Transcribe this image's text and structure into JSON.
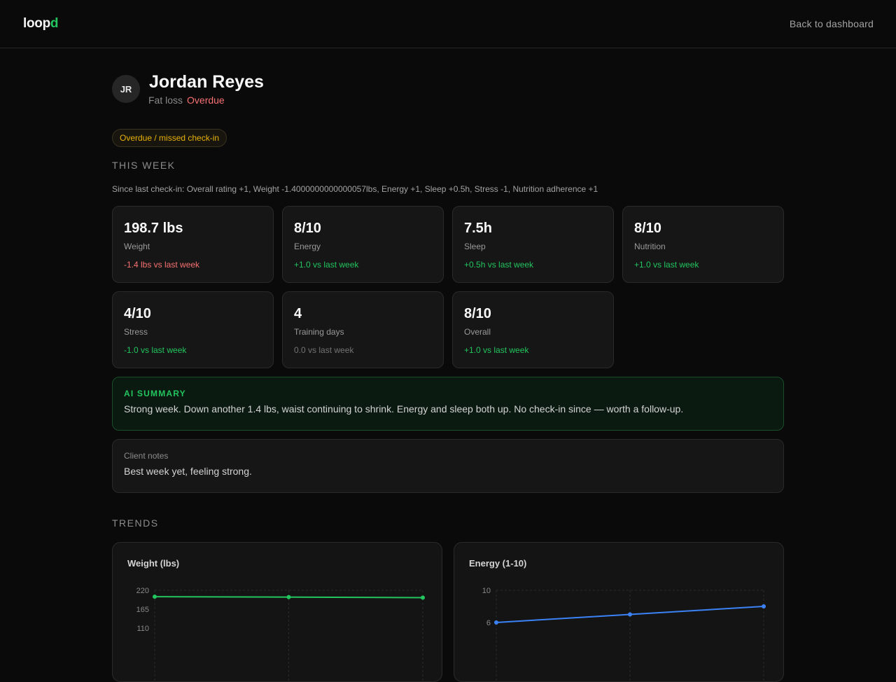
{
  "header": {
    "logo_main": "loop",
    "logo_accent": "d",
    "back_link": "Back to dashboard"
  },
  "client": {
    "initials": "JR",
    "name": "Jordan Reyes",
    "goal": "Fat loss",
    "status": "Overdue"
  },
  "alert": "Overdue / missed check-in",
  "this_week": {
    "title": "THIS WEEK",
    "since_line": "Since last check-in: Overall rating +1, Weight -1.4000000000000057lbs, Energy +1, Sleep +0.5h, Stress -1, Nutrition adherence +1",
    "stats": [
      {
        "value": "198.7 lbs",
        "label": "Weight",
        "delta": "-1.4 lbs vs last week",
        "tone": "neg"
      },
      {
        "value": "8/10",
        "label": "Energy",
        "delta": "+1.0 vs last week",
        "tone": "pos"
      },
      {
        "value": "7.5h",
        "label": "Sleep",
        "delta": "+0.5h vs last week",
        "tone": "pos"
      },
      {
        "value": "8/10",
        "label": "Nutrition",
        "delta": "+1.0 vs last week",
        "tone": "pos"
      },
      {
        "value": "4/10",
        "label": "Stress",
        "delta": "-1.0 vs last week",
        "tone": "pos"
      },
      {
        "value": "4",
        "label": "Training days",
        "delta": "0.0 vs last week",
        "tone": "zero"
      },
      {
        "value": "8/10",
        "label": "Overall",
        "delta": "+1.0 vs last week",
        "tone": "pos"
      }
    ]
  },
  "ai_summary": {
    "title": "AI SUMMARY",
    "text": "Strong week. Down another 1.4 lbs, waist continuing to shrink. Energy and sleep both up. No check-in since — worth a follow-up."
  },
  "notes": {
    "label": "Client notes",
    "text": "Best week yet, feeling strong."
  },
  "trends": {
    "title": "TRENDS"
  },
  "colors": {
    "accent": "#22c55e",
    "negative": "#f87171",
    "warning": "#eab308",
    "energy_line": "#3b82f6"
  },
  "chart_data": [
    {
      "type": "line",
      "title": "Weight (lbs)",
      "y_ticks": [
        "220",
        "165",
        "110"
      ],
      "ylim": [
        0,
        220
      ],
      "x": [
        0,
        1,
        2
      ],
      "values": [
        201.5,
        200.1,
        198.7
      ],
      "color": "#22c55e"
    },
    {
      "type": "line",
      "title": "Energy (1-10)",
      "y_ticks": [
        "10",
        "6"
      ],
      "ylim": [
        0,
        10
      ],
      "x": [
        0,
        1,
        2
      ],
      "values": [
        6,
        7,
        8
      ],
      "color": "#3b82f6"
    }
  ]
}
